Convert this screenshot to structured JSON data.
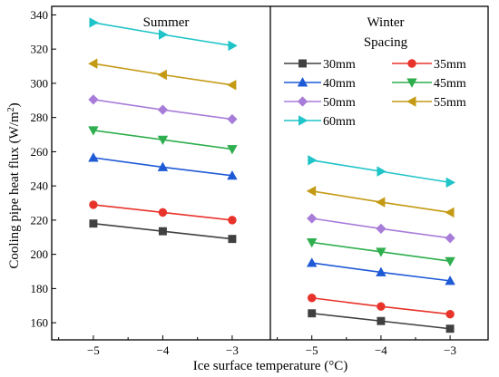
{
  "chart_data": {
    "type": "line",
    "ylabel_main": "Cooling pipe heat flux (W/m",
    "ylabel_sup": "2",
    "ylabel_close": ")",
    "xlabel": "Ice surface temperature (°C)",
    "ylim": [
      150,
      345
    ],
    "yticks": [
      160,
      180,
      200,
      220,
      240,
      260,
      280,
      300,
      320,
      340
    ],
    "x": [
      -5,
      -4,
      -3
    ],
    "xtick_labels": [
      "−5",
      "−4",
      "−3"
    ],
    "legend_title": "Spacing",
    "panels": [
      {
        "title": "Summer",
        "series": [
          {
            "name": "30mm",
            "color": "#404040",
            "marker": "square",
            "values": [
              218,
              213.5,
              209
            ]
          },
          {
            "name": "35mm",
            "color": "#e8332a",
            "marker": "circle",
            "values": [
              229,
              224.5,
              220
            ]
          },
          {
            "name": "40mm",
            "color": "#1f5ad6",
            "marker": "triangle-up",
            "values": [
              256.5,
              251,
              246
            ]
          },
          {
            "name": "45mm",
            "color": "#2eae4e",
            "marker": "triangle-down",
            "values": [
              272.5,
              267,
              261.5
            ]
          },
          {
            "name": "50mm",
            "color": "#a87cd9",
            "marker": "diamond",
            "values": [
              290.5,
              284.5,
              279
            ]
          },
          {
            "name": "55mm",
            "color": "#c49a14",
            "marker": "triangle-left",
            "values": [
              311.5,
              305,
              299
            ]
          },
          {
            "name": "60mm",
            "color": "#1fc4c8",
            "marker": "triangle-right",
            "values": [
              335.5,
              328.5,
              322
            ]
          }
        ]
      },
      {
        "title": "Winter",
        "series": [
          {
            "name": "30mm",
            "color": "#404040",
            "marker": "square",
            "values": [
              165.5,
              161,
              156.5
            ]
          },
          {
            "name": "35mm",
            "color": "#e8332a",
            "marker": "circle",
            "values": [
              174.5,
              169.5,
              165
            ]
          },
          {
            "name": "40mm",
            "color": "#1f5ad6",
            "marker": "triangle-up",
            "values": [
              195,
              189.5,
              184.5
            ]
          },
          {
            "name": "45mm",
            "color": "#2eae4e",
            "marker": "triangle-down",
            "values": [
              207,
              201.5,
              196
            ]
          },
          {
            "name": "50mm",
            "color": "#a87cd9",
            "marker": "diamond",
            "values": [
              221,
              215,
              209.5
            ]
          },
          {
            "name": "55mm",
            "color": "#c49a14",
            "marker": "triangle-left",
            "values": [
              237,
              230.5,
              224.5
            ]
          },
          {
            "name": "60mm",
            "color": "#1fc4c8",
            "marker": "triangle-right",
            "values": [
              255,
              248.5,
              242
            ]
          }
        ]
      }
    ]
  }
}
